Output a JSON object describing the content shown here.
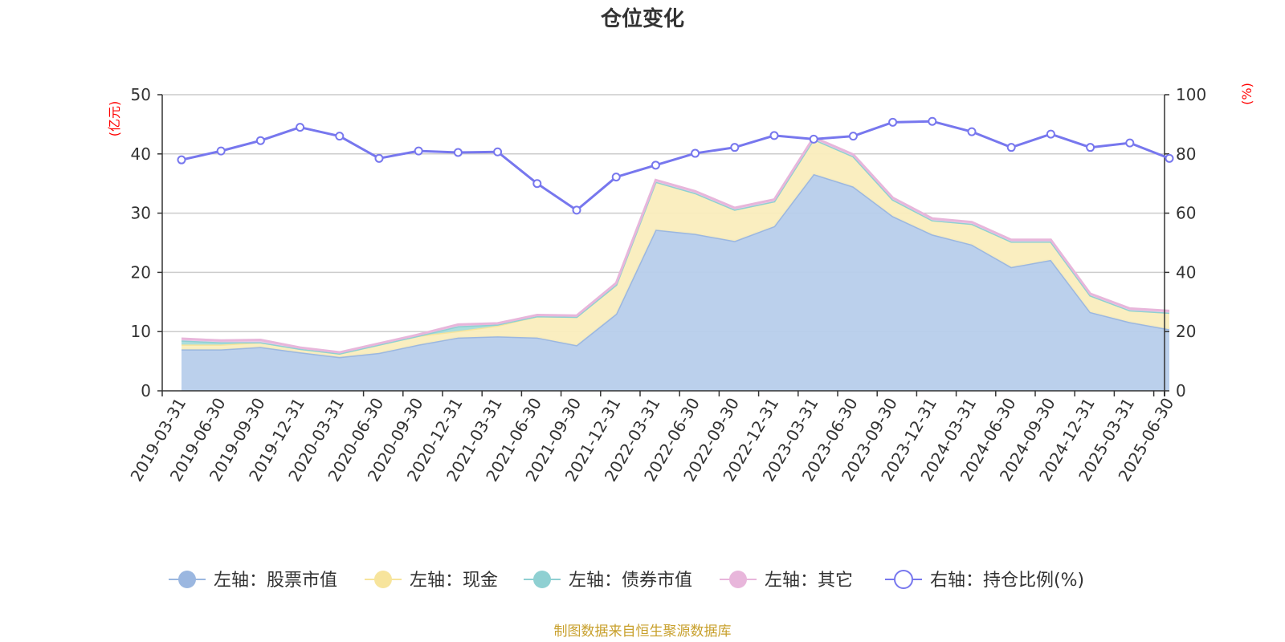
{
  "chart_data": {
    "type": "area",
    "title": "仓位变化",
    "left_unit": "(亿元)",
    "right_unit": "(%)",
    "left_ylim": [
      0,
      50
    ],
    "left_ticks": [
      "0",
      "10",
      "20",
      "30",
      "40",
      "50"
    ],
    "right_ylim": [
      0,
      100
    ],
    "right_ticks": [
      "0",
      "20",
      "40",
      "60",
      "80",
      "100"
    ],
    "grid": true,
    "legend_position": "bottom",
    "categories": [
      "2019-03-31",
      "2019-06-30",
      "2019-09-30",
      "2019-12-31",
      "2020-03-31",
      "2020-06-30",
      "2020-09-30",
      "2020-12-31",
      "2021-03-31",
      "2021-06-30",
      "2021-09-30",
      "2021-12-31",
      "2022-03-31",
      "2022-06-30",
      "2022-09-30",
      "2022-12-31",
      "2023-03-31",
      "2023-06-30",
      "2023-09-30",
      "2023-12-31",
      "2024-03-31",
      "2024-06-30",
      "2024-09-30",
      "2024-12-31",
      "2025-03-31",
      "2025-06-30"
    ],
    "series": [
      {
        "name": "左轴：股票市值",
        "axis": "left",
        "kind": "area",
        "color": "#9bb7e0",
        "fill": "#b7cdeb",
        "values": [
          7.0,
          7.0,
          7.4,
          6.5,
          5.7,
          6.4,
          7.8,
          9.0,
          9.2,
          9.0,
          7.7,
          13.0,
          27.2,
          26.5,
          25.3,
          27.8,
          36.6,
          34.5,
          29.5,
          26.4,
          24.7,
          20.9,
          22.1,
          13.3,
          11.6,
          10.4
        ]
      },
      {
        "name": "左轴：现金",
        "axis": "left",
        "kind": "area",
        "color": "#f7e49c",
        "fill": "#faedbd",
        "values": [
          0.8,
          0.8,
          0.8,
          0.6,
          0.6,
          1.4,
          1.5,
          1.1,
          1.8,
          3.6,
          4.8,
          4.9,
          8.1,
          6.9,
          5.3,
          4.2,
          5.9,
          5.1,
          2.8,
          2.4,
          3.5,
          4.3,
          3.1,
          2.8,
          2.0,
          2.8
        ]
      },
      {
        "name": "左轴：债券市值",
        "axis": "left",
        "kind": "area",
        "color": "#8fd0d2",
        "fill": "#a6dcdc",
        "values": [
          0.7,
          0.4,
          0.0,
          0.0,
          0.0,
          0.0,
          0.0,
          0.8,
          0.2,
          0.0,
          0.0,
          0.0,
          0.0,
          0.0,
          0.0,
          0.0,
          0.0,
          0.0,
          0.0,
          0.0,
          0.0,
          0.0,
          0.0,
          0.0,
          0.0,
          0.0
        ]
      },
      {
        "name": "左轴：其它",
        "axis": "left",
        "kind": "area",
        "color": "#e8b6db",
        "fill": "#eeccea",
        "values": [
          0.3,
          0.3,
          0.4,
          0.2,
          0.2,
          0.2,
          0.2,
          0.3,
          0.2,
          0.2,
          0.2,
          0.3,
          0.3,
          0.3,
          0.3,
          0.3,
          0.3,
          0.3,
          0.3,
          0.3,
          0.3,
          0.3,
          0.3,
          0.3,
          0.3,
          0.3
        ]
      },
      {
        "name": "右轴：持仓比例(%)",
        "axis": "right",
        "kind": "line",
        "color": "#7777ee",
        "values": [
          78,
          81,
          84.5,
          89,
          86,
          78.5,
          81,
          80.5,
          80.7,
          70,
          61,
          72.2,
          76.2,
          80.2,
          82.2,
          86.2,
          85,
          86,
          90.7,
          91,
          87.5,
          82.2,
          86.7,
          82.2,
          83.7,
          78.5
        ]
      }
    ],
    "source_note": "制图数据来自恒生聚源数据库"
  }
}
